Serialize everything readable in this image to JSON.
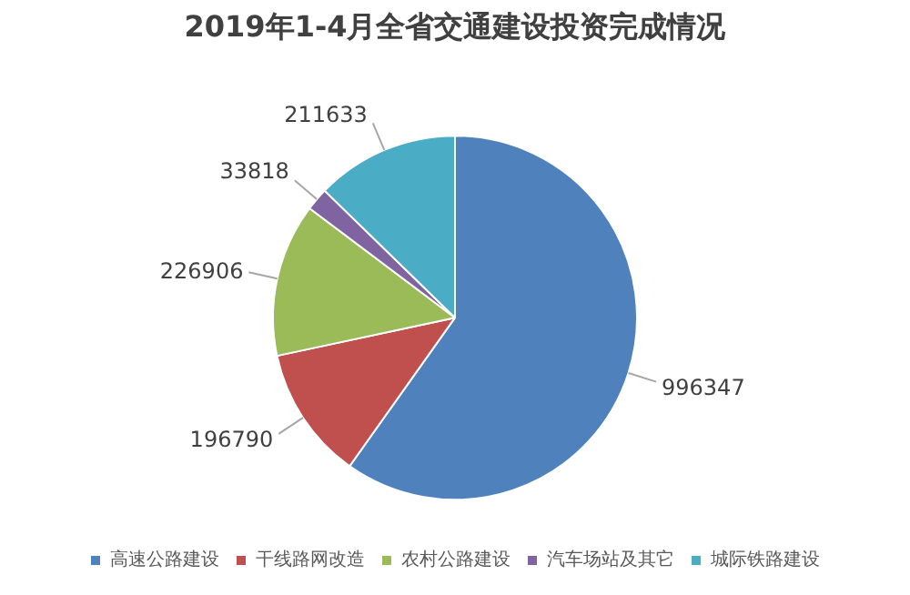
{
  "chart_data": {
    "type": "pie",
    "title": "2019年1-4月全省交通建设投资完成情况",
    "categories": [
      "高速公路建设",
      "干线路网改造",
      "农村公路建设",
      "汽车场站及其它",
      "城际铁路建设"
    ],
    "values": [
      996347,
      196790,
      226906,
      33818,
      211633
    ],
    "colors": [
      "#4f81bd",
      "#c0504d",
      "#9bbb59",
      "#8064a2",
      "#4bacc6"
    ],
    "data_labels": true,
    "legend": "bottom"
  }
}
